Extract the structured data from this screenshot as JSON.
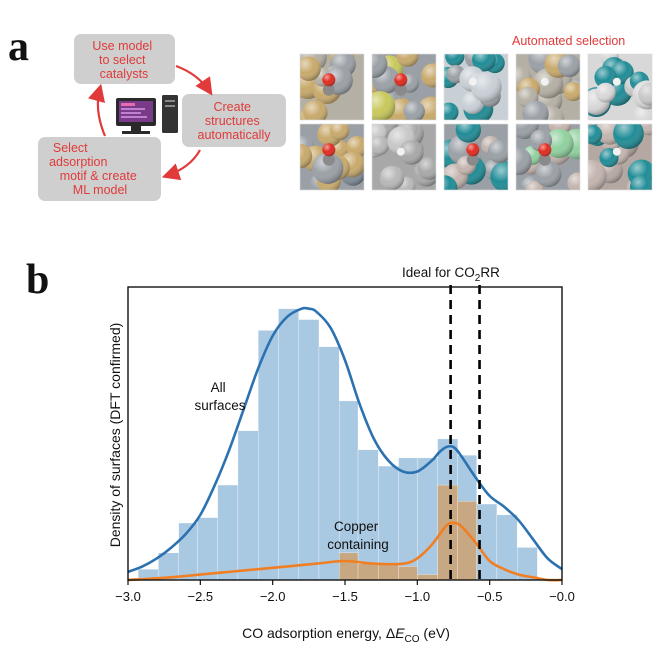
{
  "panel_a": {
    "letter": "a",
    "loop_boxes": [
      {
        "lines": [
          "Use model",
          "to select",
          "catalysts"
        ]
      },
      {
        "lines": [
          "Create",
          "structures",
          "automatically"
        ]
      },
      {
        "lines": [
          "Select",
          "adsorption",
          "motif & create",
          "ML model"
        ]
      }
    ],
    "automated_selection_label": "Automated selection",
    "icons": [
      "computer-icon",
      "refresh-cycle-arrows"
    ],
    "tiles": [
      {
        "palette": [
          "#c8a96b",
          "#9aa0a6",
          "#b5b0a5"
        ],
        "adsorbate": "CO"
      },
      {
        "palette": [
          "#c8c85a",
          "#c8a96b",
          "#9aa0a6"
        ],
        "adsorbate": "CO"
      },
      {
        "palette": [
          "#1f8c96",
          "#9aa0a6",
          "#c8d0d6"
        ],
        "adsorbate": "H"
      },
      {
        "palette": [
          "#c8a96b",
          "#9aa0a6",
          "#b5b0a5"
        ],
        "adsorbate": "H"
      },
      {
        "palette": [
          "#1f8c96",
          "#c8c8c8",
          "#d8d8d8"
        ],
        "adsorbate": "H"
      },
      {
        "palette": [
          "#c8a96b",
          "#7e8a96",
          "#9aa0a6"
        ],
        "adsorbate": "CO"
      },
      {
        "palette": [
          "#c8c8c8",
          "#b8b8b8",
          "#a8a8a8"
        ],
        "adsorbate": "H"
      },
      {
        "palette": [
          "#1f8c96",
          "#c4b4ae",
          "#9aa0a6"
        ],
        "adsorbate": "CO"
      },
      {
        "palette": [
          "#c4b4ae",
          "#8fd19e",
          "#9aa0a6"
        ],
        "adsorbate": "CO"
      },
      {
        "palette": [
          "#c4b4ae",
          "#1f8c96",
          "#b5a8a3"
        ],
        "adsorbate": "H"
      }
    ]
  },
  "panel_b": {
    "letter": "b"
  },
  "chart_data": {
    "type": "bar",
    "ylabel": "Density of surfaces (DFT confirmed)",
    "xlabel_prefix": "CO adsorption energy, Δ",
    "xlabel_symbol": "E",
    "xlabel_subscript": "CO",
    "xlabel_suffix": " (eV)",
    "xlim": [
      -3.0,
      0.0
    ],
    "xticks": [
      -3.0,
      -2.5,
      -2.0,
      -1.5,
      -1.0,
      -0.5,
      0.0
    ],
    "xtick_labels": [
      "−3.0",
      "−2.5",
      "−2.0",
      "−1.5",
      "−1.0",
      "−0.5",
      "−0.0"
    ],
    "ylim": [
      0,
      1.08
    ],
    "grid": false,
    "bin_edges": [
      -2.93,
      -2.79,
      -2.65,
      -2.52,
      -2.38,
      -2.24,
      -2.1,
      -1.96,
      -1.82,
      -1.68,
      -1.54,
      -1.41,
      -1.27,
      -1.13,
      -1.0,
      -0.86,
      -0.72,
      -0.59,
      -0.45,
      -0.31,
      -0.17
    ],
    "series": [
      {
        "name": "All surfaces",
        "label_lines": [
          "All",
          "surfaces"
        ],
        "bar_color": "#a9c9e3",
        "line_color": "#2c72b0",
        "values": [
          0.04,
          0.1,
          0.21,
          0.23,
          0.35,
          0.55,
          0.92,
          1.0,
          0.96,
          0.86,
          0.66,
          0.48,
          0.42,
          0.45,
          0.45,
          0.52,
          0.46,
          0.28,
          0.24,
          0.12
        ],
        "kde_x": [
          -3.0,
          -2.9,
          -2.8,
          -2.7,
          -2.6,
          -2.5,
          -2.4,
          -2.3,
          -2.2,
          -2.1,
          -2.0,
          -1.9,
          -1.8,
          -1.75,
          -1.7,
          -1.6,
          -1.5,
          -1.4,
          -1.3,
          -1.2,
          -1.1,
          -1.0,
          -0.9,
          -0.85,
          -0.8,
          -0.75,
          -0.7,
          -0.6,
          -0.5,
          -0.4,
          -0.3,
          -0.2,
          -0.1,
          0.0
        ],
        "kde_y": [
          0.03,
          0.05,
          0.08,
          0.12,
          0.17,
          0.24,
          0.35,
          0.48,
          0.63,
          0.78,
          0.9,
          0.97,
          1.0,
          1.0,
          0.99,
          0.93,
          0.81,
          0.65,
          0.52,
          0.44,
          0.4,
          0.4,
          0.44,
          0.47,
          0.49,
          0.49,
          0.46,
          0.38,
          0.31,
          0.27,
          0.22,
          0.15,
          0.08,
          0.04
        ]
      },
      {
        "name": "Copper containing",
        "label_lines": [
          "Copper",
          "containing"
        ],
        "bar_color": "#c8a882",
        "line_color": "#f07f24",
        "values": [
          0.0,
          0.0,
          0.0,
          0.0,
          0.0,
          0.0,
          0.0,
          0.0,
          0.0,
          0.0,
          0.1,
          0.06,
          0.06,
          0.05,
          0.02,
          0.35,
          0.29,
          0.0,
          0.0,
          0.0
        ],
        "kde_x": [
          -3.0,
          -2.7,
          -2.5,
          -2.3,
          -2.1,
          -1.9,
          -1.7,
          -1.5,
          -1.3,
          -1.1,
          -1.0,
          -0.9,
          -0.8,
          -0.75,
          -0.7,
          -0.6,
          -0.5,
          -0.4,
          -0.3,
          -0.2,
          -0.1,
          0.0
        ],
        "kde_y": [
          0.0,
          0.01,
          0.02,
          0.03,
          0.04,
          0.05,
          0.06,
          0.07,
          0.06,
          0.06,
          0.08,
          0.13,
          0.2,
          0.21,
          0.2,
          0.14,
          0.07,
          0.04,
          0.02,
          0.01,
          0.0,
          0.0
        ]
      }
    ],
    "annotations": {
      "ideal_label_prefix": "Ideal for CO",
      "ideal_label_sub": "2",
      "ideal_label_suffix": "RR",
      "ideal_range": [
        -0.77,
        -0.57
      ]
    }
  }
}
